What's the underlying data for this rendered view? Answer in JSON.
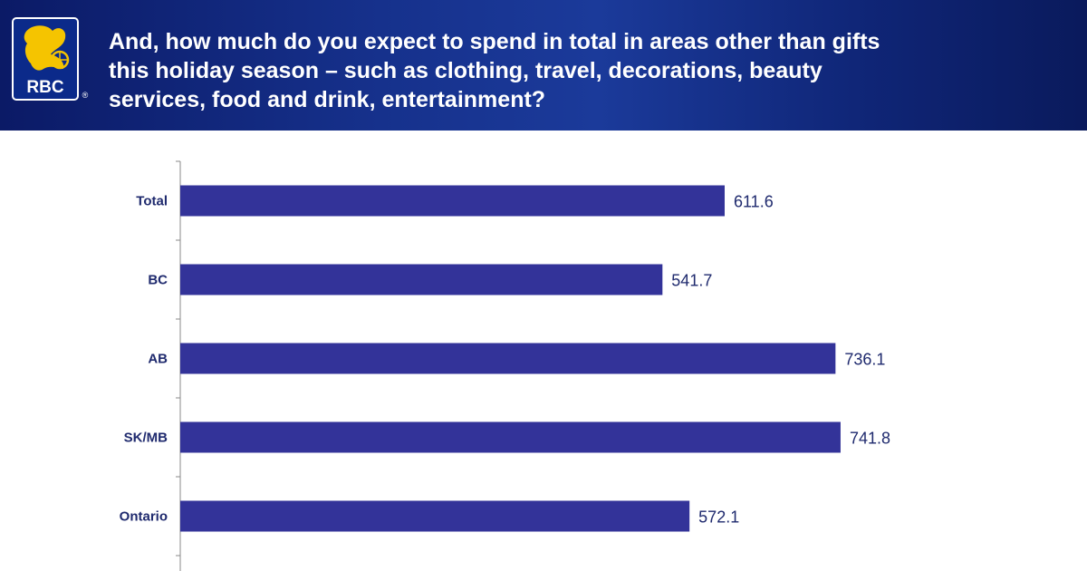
{
  "header": {
    "question_lines": [
      "And, how much do you expect to spend in total in areas other than gifts",
      "this holiday season – such as clothing, travel, decorations, beauty",
      "services, food and drink, entertainment?"
    ],
    "logo_text": "RBC",
    "logo_mark": "®"
  },
  "colors": {
    "bar": "#333399",
    "text": "#1f2a6e",
    "axis": "#8a8a8a",
    "logo_gold": "#f5c400",
    "logo_blue": "#0b2a8a"
  },
  "chart_data": {
    "type": "bar",
    "orientation": "horizontal",
    "categories": [
      "Total",
      "BC",
      "AB",
      "SK/MB",
      "Ontario"
    ],
    "values": [
      611.6,
      541.7,
      736.1,
      741.8,
      572.1
    ],
    "value_labels": [
      "611.6",
      "541.7",
      "736.1",
      "741.8",
      "572.1"
    ],
    "title": "",
    "xlabel": "",
    "ylabel": "",
    "xlim": [
      0,
      1000
    ],
    "grid": false,
    "data_labels": true
  }
}
